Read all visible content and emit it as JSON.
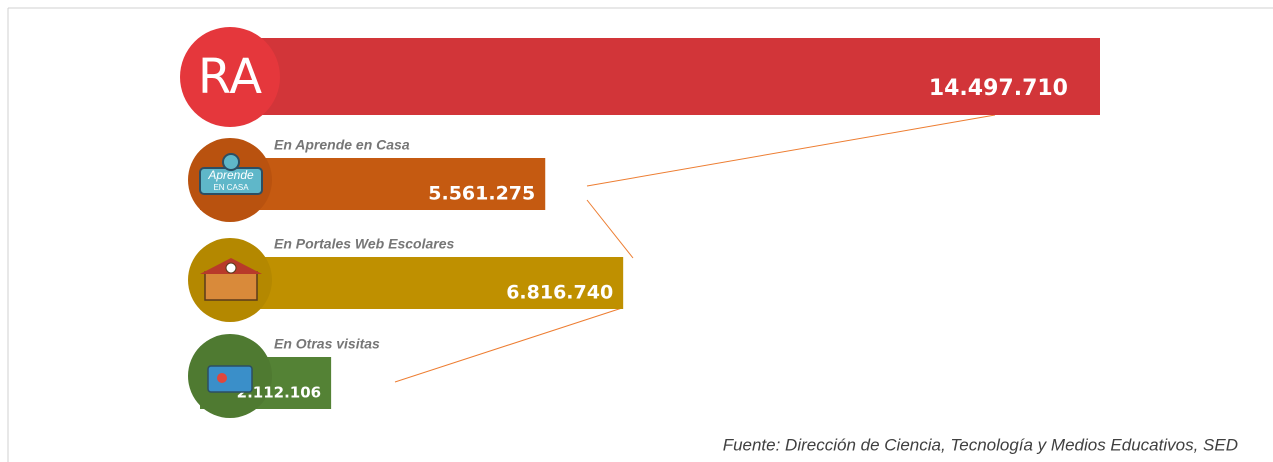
{
  "chart_data": {
    "type": "bar",
    "orientation": "horizontal",
    "categories": [
      "RA",
      "En Aprende en Casa",
      "En Portales Web Escolares",
      "En Otras visitas"
    ],
    "values": [
      14497710,
      5561275,
      6816740,
      2112106
    ],
    "value_labels": [
      "14.497.710",
      "5.561.275",
      "6.816.740",
      "2.112.106"
    ],
    "colors": [
      "#d23539",
      "#c55a11",
      "#bf9000",
      "#548235"
    ],
    "badge_texts": [
      "Aprende",
      "EN CASA"
    ],
    "source": "Fuente: Dirección de Ciencia, Tecnología y Medios Educativos, SED"
  }
}
